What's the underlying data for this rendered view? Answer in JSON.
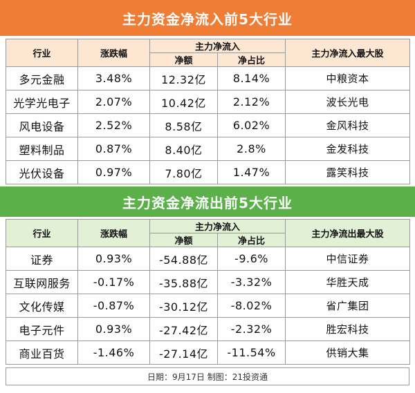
{
  "inflow": {
    "title": "主力资金净流入前5大行业",
    "headers": {
      "industry": "行业",
      "change": "涨跌幅",
      "net_group": "主力净流入",
      "net_amount": "净额",
      "net_ratio": "净占比",
      "top_stock": "主力净流入最大股"
    },
    "rows": [
      {
        "industry": "多元金融",
        "change": "3.48%",
        "net_amount": "12.32亿",
        "net_ratio": "8.14%",
        "top_stock": "中粮资本"
      },
      {
        "industry": "光学光电子",
        "change": "2.07%",
        "net_amount": "10.42亿",
        "net_ratio": "2.12%",
        "top_stock": "波长光电"
      },
      {
        "industry": "风电设备",
        "change": "2.52%",
        "net_amount": "8.58亿",
        "net_ratio": "6.02%",
        "top_stock": "金风科技"
      },
      {
        "industry": "塑料制品",
        "change": "0.87%",
        "net_amount": "8.40亿",
        "net_ratio": "2.8%",
        "top_stock": "金发科技"
      },
      {
        "industry": "光伏设备",
        "change": "0.97%",
        "net_amount": "7.80亿",
        "net_ratio": "1.47%",
        "top_stock": "露笑科技"
      }
    ]
  },
  "outflow": {
    "title": "主力资金净流出前5大行业",
    "headers": {
      "industry": "行业",
      "change": "涨跌幅",
      "net_group": "主力净流入",
      "net_amount": "净额",
      "net_ratio": "净占比",
      "top_stock": "主力净流出最大股"
    },
    "rows": [
      {
        "industry": "证券",
        "change": "0.93%",
        "net_amount": "-54.88亿",
        "net_ratio": "-9.6%",
        "top_stock": "中信证券"
      },
      {
        "industry": "互联网服务",
        "change": "-0.17%",
        "net_amount": "-35.88亿",
        "net_ratio": "-3.32%",
        "top_stock": "华胜天成"
      },
      {
        "industry": "文化传媒",
        "change": "-0.87%",
        "net_amount": "-30.12亿",
        "net_ratio": "-8.02%",
        "top_stock": "省广集团"
      },
      {
        "industry": "电子元件",
        "change": "0.93%",
        "net_amount": "-27.42亿",
        "net_ratio": "-2.32%",
        "top_stock": "胜宏科技"
      },
      {
        "industry": "商业百货",
        "change": "-1.46%",
        "net_amount": "-27.14亿",
        "net_ratio": "-11.54%",
        "top_stock": "供销大集"
      }
    ]
  },
  "footer": "日期：9月17日 制图：21投资通",
  "colors": {
    "inflow_title": "#f07d35",
    "outflow_title": "#5bb04a",
    "inflow_header": "#fde7d3",
    "outflow_header": "#e2f0d6"
  }
}
